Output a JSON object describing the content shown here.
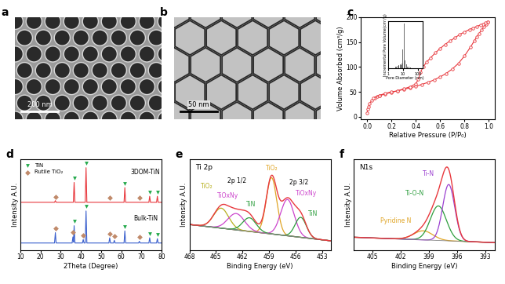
{
  "images": [
    {
      "panel": "a",
      "scale_bar": "200 nm"
    },
    {
      "panel": "b",
      "scale_bar": "50 nm"
    }
  ],
  "chart_data": [
    {
      "panel": "c",
      "type": "line",
      "x_label": "Relative Pressure (P/P₀)",
      "y_label": "Volume Absorbed (cm³/g)",
      "xlim": [
        -0.05,
        1.05
      ],
      "xticks": [
        {
          "value": 0.0,
          "label": "0.0"
        },
        {
          "value": 0.2,
          "label": "0.2"
        },
        {
          "value": 0.4,
          "label": "0.4"
        },
        {
          "value": 0.6,
          "label": "0.6"
        },
        {
          "value": 0.8,
          "label": "0.8"
        },
        {
          "value": 1.0,
          "label": "1.0"
        }
      ],
      "ylim": [
        -5,
        200
      ],
      "yticks": [
        0,
        50,
        100,
        150,
        200
      ],
      "series": [
        {
          "color": "#e8383d",
          "marker": "circle",
          "line_style": "solid",
          "x": [
            0.0,
            0.005,
            0.01,
            0.02,
            0.04,
            0.06,
            0.08,
            0.1,
            0.15,
            0.2,
            0.25,
            0.3,
            0.35,
            0.4,
            0.45,
            0.5,
            0.55,
            0.6,
            0.65,
            0.7,
            0.75,
            0.8,
            0.85,
            0.88,
            0.9,
            0.92,
            0.94,
            0.96,
            0.98,
            0.99
          ],
          "values": [
            8,
            15,
            20,
            27,
            33,
            37,
            40,
            42,
            46,
            49,
            52,
            55,
            58,
            61,
            65,
            69,
            74,
            80,
            87,
            96,
            107,
            122,
            140,
            152,
            160,
            167,
            174,
            180,
            186,
            190
          ]
        },
        {
          "color": "#e8383d",
          "marker": "circle",
          "line_style": "solid",
          "x": [
            0.99,
            0.97,
            0.95,
            0.93,
            0.9,
            0.87,
            0.84,
            0.8,
            0.76,
            0.72,
            0.68,
            0.64,
            0.6,
            0.56,
            0.52,
            0.49,
            0.46,
            0.44,
            0.42,
            0.4,
            0.35,
            0.3,
            0.25,
            0.2,
            0.15,
            0.1,
            0.05
          ],
          "values": [
            190,
            188,
            186,
            184,
            181,
            178,
            175,
            170,
            165,
            158,
            152,
            145,
            137,
            128,
            118,
            110,
            100,
            90,
            75,
            66,
            60,
            56,
            52,
            50,
            47,
            43,
            38
          ]
        }
      ],
      "inset": {
        "type": "bar",
        "log": "x",
        "x_label": "Pore Diameter (nm)",
        "y_label": "Incremental Pore Volume(cm³/g)",
        "x": [
          3.5,
          4.5,
          5.5,
          6.5,
          7.5,
          8.5,
          10,
          12,
          14,
          17,
          20,
          25,
          32
        ],
        "values": [
          4,
          5,
          7,
          9,
          6,
          11,
          42,
          100,
          18,
          9,
          4,
          3,
          2
        ],
        "color": "#707070",
        "xlim": [
          1,
          200
        ],
        "xticks": [
          1,
          10,
          100
        ],
        "ylim": [
          0,
          105
        ],
        "tick_labels": "x"
      }
    },
    {
      "panel": "d",
      "type": "line",
      "x_label": "2Theta (Degree)",
      "y_label": "Intensity A.U.",
      "xlim": [
        10,
        80
      ],
      "xticks": [
        10,
        20,
        30,
        40,
        50,
        60,
        70,
        80
      ],
      "ylim": [
        0,
        105
      ],
      "tick_labels": "x",
      "legend": "upper left",
      "series": [
        {
          "color": "#e8383d",
          "line_style": "solid",
          "x": [
            10,
            27.0,
            27.4,
            27.8,
            36.3,
            36.7,
            37.1,
            42.2,
            42.6,
            43.0,
            61.4,
            61.8,
            62.2,
            73.7,
            74.1,
            74.5,
            77.5,
            77.9,
            78.3,
            80
          ],
          "values": [
            55,
            55,
            57,
            55,
            55,
            78,
            55,
            55,
            95,
            55,
            55,
            72,
            55,
            55,
            62,
            55,
            55,
            62,
            55,
            55
          ]
        },
        {
          "color": "#3a5fcd",
          "line_style": "solid",
          "x": [
            10,
            27.0,
            27.4,
            27.8,
            35.7,
            36.1,
            36.4,
            36.7,
            37.1,
            40.8,
            41.2,
            41.6,
            42.2,
            42.6,
            43.0,
            53.9,
            54.3,
            54.7,
            56.2,
            56.6,
            57.0,
            61.4,
            61.8,
            62.2,
            68.6,
            69.0,
            69.4,
            73.7,
            74.1,
            74.5,
            77.5,
            77.9,
            78.3,
            80
          ],
          "values": [
            8,
            8,
            20,
            8,
            8,
            15,
            9,
            28,
            8,
            8,
            12,
            8,
            8,
            45,
            8,
            8,
            14,
            8,
            8,
            11,
            8,
            8,
            22,
            8,
            8,
            10,
            8,
            8,
            14,
            8,
            8,
            13,
            8,
            8
          ]
        },
        {
          "name": "TiN",
          "type": "scatter",
          "marker": "triangle_down",
          "color": "#22a84a",
          "x": [
            36.7,
            42.6,
            61.8,
            74.1,
            77.9,
            36.7,
            42.6,
            61.8,
            74.1,
            77.9
          ],
          "values": [
            83,
            100,
            77,
            67,
            67,
            33,
            50,
            27,
            19,
            18
          ]
        },
        {
          "name": "Rutile TiO₂",
          "type": "scatter",
          "marker": "diamond",
          "color": "#c08a6a",
          "x": [
            27.4,
            54.3,
            69.0,
            27.4,
            36.1,
            41.2,
            54.3,
            56.6,
            69.0
          ],
          "values": [
            61,
            60,
            60,
            25,
            20,
            17,
            19,
            16,
            15
          ]
        }
      ],
      "annotations": [
        {
          "text": "3DOM-TiN",
          "x": 72,
          "y": 90
        },
        {
          "text": "Bulk-TiN",
          "x": 72,
          "y": 36
        }
      ]
    },
    {
      "panel": "e",
      "type": "line",
      "title": "Ti 2p",
      "x_label": "Binding Energy (eV)",
      "y_label": "Intensity A.U.",
      "xlim": [
        468,
        452
      ],
      "xticks": [
        468,
        465,
        462,
        459,
        456,
        453
      ],
      "ylim": [
        0,
        100
      ],
      "tick_labels": "x",
      "color": "#e8383d",
      "background": {
        "x": [
          468,
          452
        ],
        "values": [
          28,
          10
        ]
      },
      "components": [
        {
          "name": "TiO₂",
          "color": "#e0a526",
          "center": 458.7,
          "height": 62,
          "fwhm": 1.4,
          "label_x": 458.7,
          "label_y": 90
        },
        {
          "name": "TiOxNy",
          "color": "#cc44cc",
          "center": 456.9,
          "height": 40,
          "fwhm": 1.8,
          "label_x": 454.8,
          "label_y": 62
        },
        {
          "name": "TiN",
          "color": "#2e9e3e",
          "center": 455.4,
          "height": 22,
          "fwhm": 1.5,
          "label_x": 454.0,
          "label_y": 40
        },
        {
          "name": "TiO₂",
          "color": "#b8b020",
          "center": 464.4,
          "height": 22,
          "fwhm": 2.0,
          "label_x": 466.0,
          "label_y": 70
        },
        {
          "name": "TiOxNy",
          "color": "#cc44cc",
          "center": 462.7,
          "height": 18,
          "fwhm": 2.2,
          "label_x": 463.6,
          "label_y": 60
        },
        {
          "name": "TiN",
          "color": "#2e9e3e",
          "center": 461.2,
          "height": 15,
          "fwhm": 1.8,
          "label_x": 461.0,
          "label_y": 50
        }
      ],
      "annotations": [
        {
          "text": "2p 1/2",
          "x": 462.6,
          "y": 76
        },
        {
          "text": "2p 3/2",
          "x": 455.6,
          "y": 74
        }
      ]
    },
    {
      "panel": "f",
      "type": "line",
      "title": "N1s",
      "x_label": "Binding Energy (eV)",
      "y_label": "Intensity A.U.",
      "xlim": [
        407,
        392
      ],
      "xticks": [
        405,
        402,
        399,
        396,
        393
      ],
      "ylim": [
        0,
        100
      ],
      "tick_labels": "x",
      "color": "#e8383d",
      "background": {
        "x": [
          407,
          392
        ],
        "values": [
          14,
          8
        ]
      },
      "components": [
        {
          "name": "Pyridine N",
          "color": "#e0a526",
          "center": 399.6,
          "height": 10,
          "fwhm": 2.4,
          "label_x": 402.5,
          "label_y": 32
        },
        {
          "name": "Ti-O-N",
          "color": "#2e9e3e",
          "center": 398.0,
          "height": 38,
          "fwhm": 2.0,
          "label_x": 400.5,
          "label_y": 62
        },
        {
          "name": "Ti-N",
          "color": "#9b40d0",
          "center": 396.9,
          "height": 62,
          "fwhm": 1.5,
          "label_x": 399.0,
          "label_y": 84
        }
      ]
    }
  ]
}
